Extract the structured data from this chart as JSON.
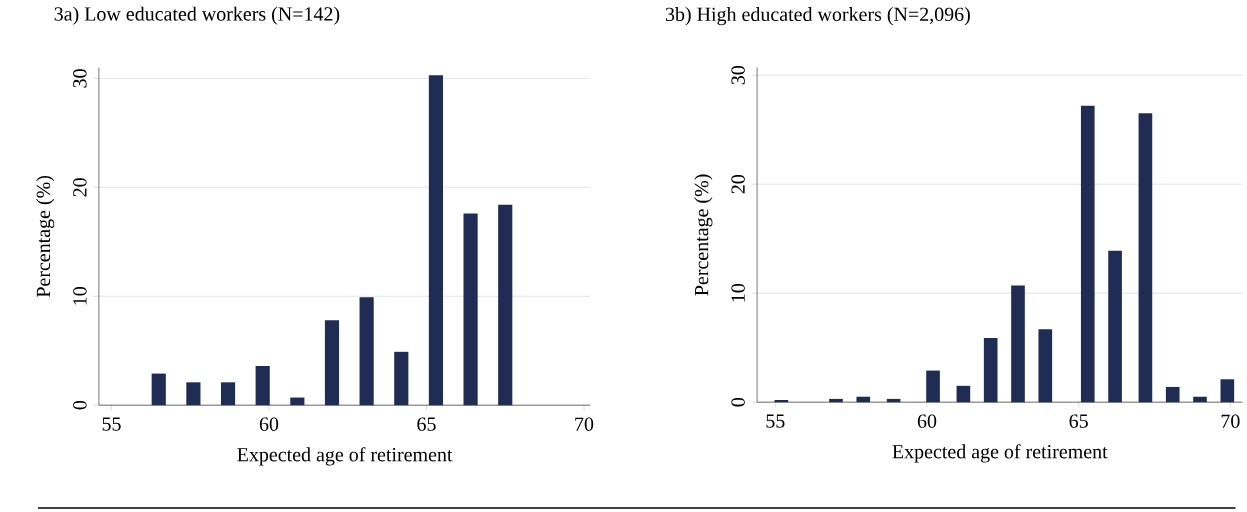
{
  "chart_data": [
    {
      "type": "bar",
      "title": "3a) Low educated workers (N=142)",
      "xlabel": "Expected age of retirement",
      "ylabel": "Percentage (%)",
      "color": "#1f2d54",
      "grid": "y",
      "x": [
        56.5,
        57.6,
        58.7,
        59.8,
        60.9,
        62.0,
        63.1,
        64.2,
        65.3,
        66.4,
        67.5
      ],
      "values": [
        2.9,
        2.1,
        2.1,
        3.6,
        0.7,
        7.8,
        9.9,
        4.9,
        30.3,
        17.6,
        18.4
      ],
      "xlim": [
        54.6,
        70.2
      ],
      "ylim": [
        0,
        31
      ],
      "xticks": [
        55,
        60,
        65,
        70
      ],
      "yticks": [
        0,
        10,
        20,
        30
      ]
    },
    {
      "type": "bar",
      "title": "3b) High educated workers (N=2,096)",
      "xlabel": "Expected age of retirement",
      "ylabel": "Percentage (%)",
      "color": "#1f2d54",
      "grid": "y",
      "x": [
        55.2,
        57.0,
        57.9,
        58.9,
        60.2,
        61.2,
        62.1,
        63.0,
        63.9,
        65.3,
        66.2,
        67.2,
        68.1,
        69.0,
        69.9
      ],
      "values": [
        0.2,
        0.3,
        0.5,
        0.3,
        2.9,
        1.5,
        5.9,
        10.7,
        6.7,
        27.2,
        13.9,
        26.5,
        1.4,
        0.5,
        2.1
      ],
      "xlim": [
        54.4,
        70.4
      ],
      "ylim": [
        0,
        30.7
      ],
      "xticks": [
        55,
        60,
        65,
        70
      ],
      "yticks": [
        0,
        10,
        20,
        30
      ]
    }
  ]
}
